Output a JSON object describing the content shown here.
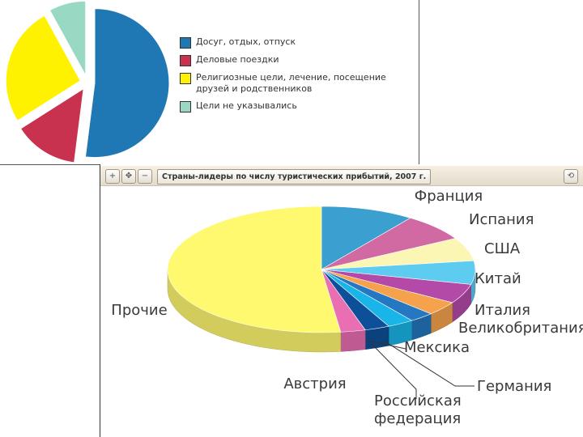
{
  "chart_data": [
    {
      "type": "pie",
      "title": "",
      "legend_position": "right",
      "slices": [
        {
          "label": "Досуг, отдых, отпуск",
          "value": 52,
          "color": "#1f78b4"
        },
        {
          "label": "Деловые поездки",
          "value": 14,
          "color": "#c8324f"
        },
        {
          "label": "Религиозные цели, лечение, посещение друзей и родственников",
          "value": 26,
          "color": "#fff200"
        },
        {
          "label": "Цели не указывались",
          "value": 8,
          "color": "#99d8c2"
        }
      ]
    },
    {
      "type": "pie",
      "title": "Страны-лидеры по числу туристических прибытий, 2007 г.",
      "style": "3d",
      "slices": [
        {
          "label": "Франция",
          "value": 9.8,
          "color": "#3b9fd0"
        },
        {
          "label": "Испания",
          "value": 7.0,
          "color": "#d16aa2"
        },
        {
          "label": "США",
          "value": 6.0,
          "color": "#fbf6b4"
        },
        {
          "label": "Китай",
          "value": 6.0,
          "color": "#5ecbf0"
        },
        {
          "label": "Италия",
          "value": 5.0,
          "color": "#b44aa8"
        },
        {
          "label": "Великобритания",
          "value": 3.6,
          "color": "#f6a24d"
        },
        {
          "label": "Мексика",
          "value": 2.6,
          "color": "#2477c0"
        },
        {
          "label": "Германия",
          "value": 2.8,
          "color": "#19b4e8"
        },
        {
          "label": "Российская федерация",
          "value": 2.6,
          "color": "#0d4f99"
        },
        {
          "label": "Австрия",
          "value": 2.6,
          "color": "#e96fb2"
        },
        {
          "label": "Прочие",
          "value": 52.0,
          "color": "#fff96f"
        }
      ]
    }
  ],
  "toolbar": {
    "zoom_in": "+",
    "pan": "✥",
    "zoom_out": "−",
    "refresh": "⟲"
  }
}
